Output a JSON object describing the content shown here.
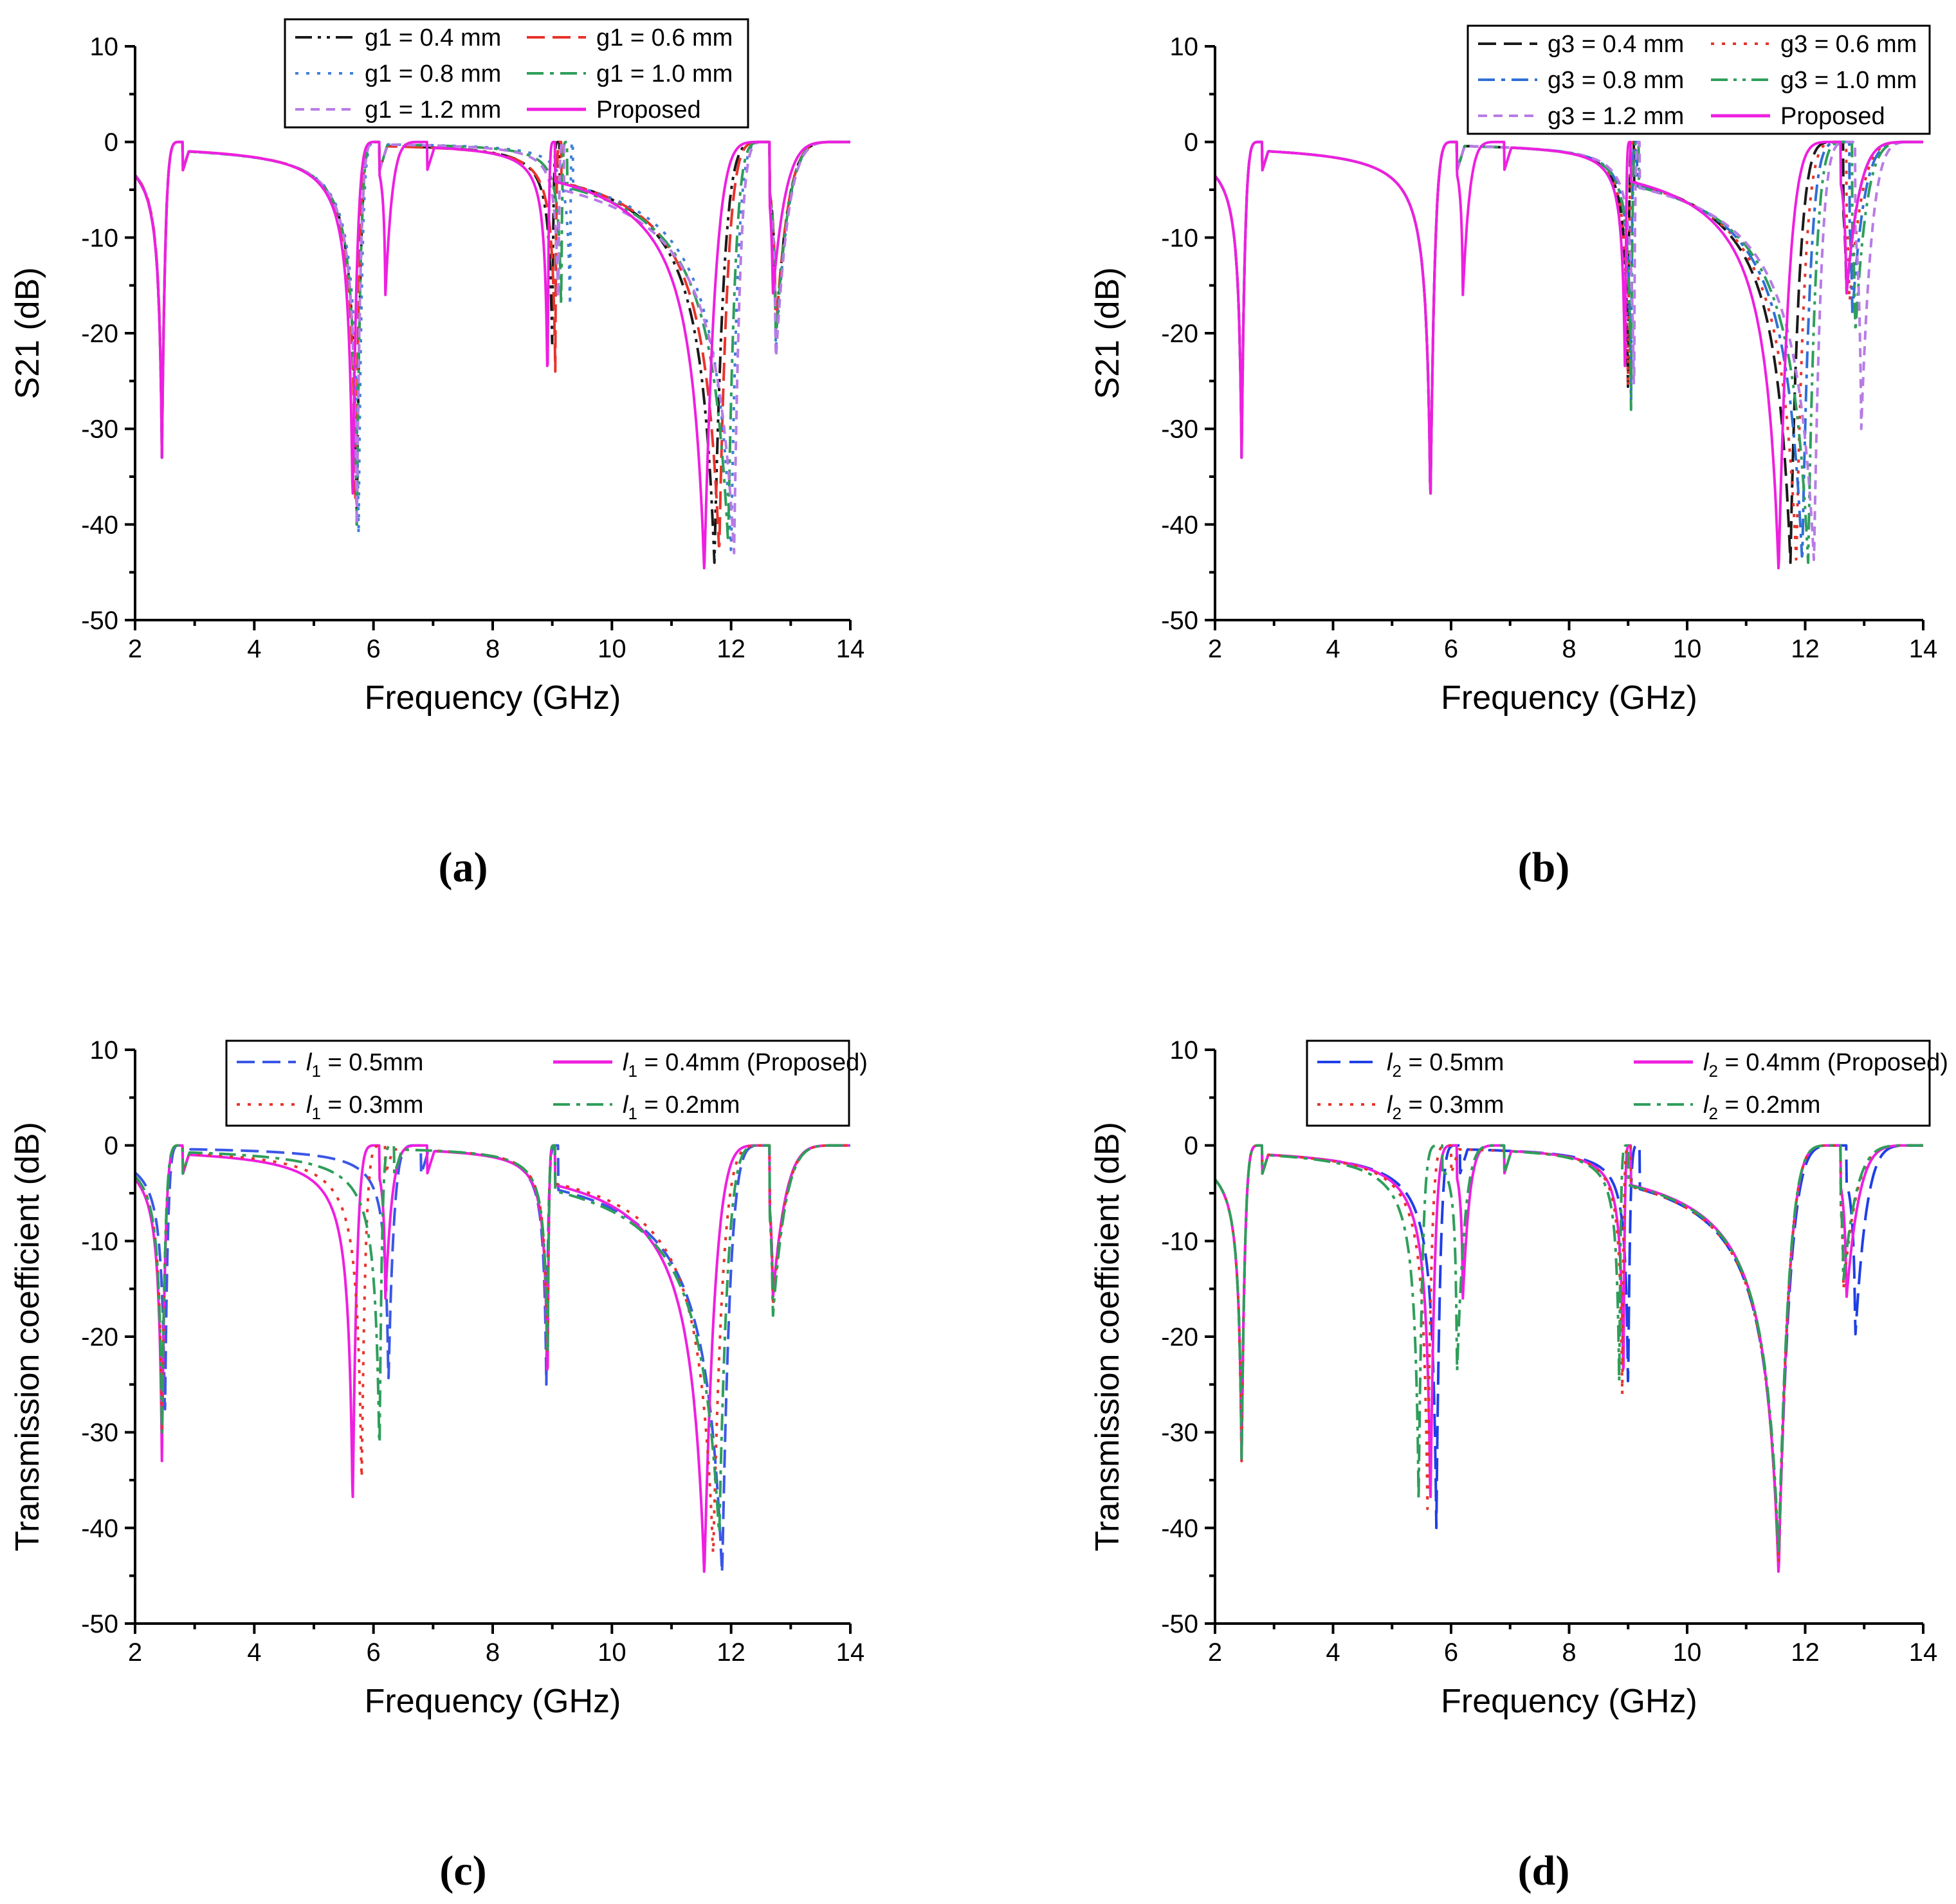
{
  "chart_data": [
    {
      "type": "line",
      "panel": "(a)",
      "xlabel": "Frequency (GHz)",
      "ylabel": "S21 (dB)",
      "xlim": [
        2,
        14
      ],
      "ylim": [
        -50,
        10
      ],
      "xticks": [
        2,
        4,
        6,
        8,
        10,
        12,
        14
      ],
      "yticks": [
        10,
        0,
        -10,
        -20,
        -30,
        -40,
        -50
      ],
      "series": [
        {
          "name": "g1 = 0.4 mm",
          "color": "#1a1a1a",
          "dash": "dashdotdot",
          "notches": [
            {
              "f": 2.45,
              "d": -33,
              "w": 0.06,
              "r": 2.8
            },
            {
              "f": 5.72,
              "d": -40,
              "w": 0.08,
              "r": 6.1
            },
            {
              "f": 9.0,
              "d": -22,
              "w": 0.06,
              "r": 9.12
            },
            {
              "f": 11.72,
              "d": -44,
              "w": 0.3,
              "r": 12.65
            },
            {
              "f": 12.75,
              "d": -20,
              "w": 0.04,
              "r": 14
            }
          ]
        },
        {
          "name": "g1 = 0.6 mm",
          "color": "#e8332b",
          "dash": "dash",
          "notches": [
            {
              "f": 2.45,
              "d": -32,
              "w": 0.06,
              "r": 2.8
            },
            {
              "f": 5.7,
              "d": -39,
              "w": 0.08,
              "r": 6.1
            },
            {
              "f": 9.05,
              "d": -24,
              "w": 0.06,
              "r": 9.15
            },
            {
              "f": 11.8,
              "d": -43,
              "w": 0.32,
              "r": 12.65
            },
            {
              "f": 12.75,
              "d": -20,
              "w": 0.04,
              "r": 14
            }
          ]
        },
        {
          "name": "g1 = 0.8 mm",
          "color": "#3f7fd9",
          "dash": "dot",
          "notches": [
            {
              "f": 2.45,
              "d": -33,
              "w": 0.06,
              "r": 2.8
            },
            {
              "f": 5.75,
              "d": -41,
              "w": 0.08,
              "r": 6.1
            },
            {
              "f": 9.3,
              "d": -18,
              "w": 0.05,
              "r": 9.35
            },
            {
              "f": 12.0,
              "d": -43,
              "w": 0.35,
              "r": 12.65
            },
            {
              "f": 12.75,
              "d": -22,
              "w": 0.04,
              "r": 14
            }
          ]
        },
        {
          "name": "g1 = 1.0 mm",
          "color": "#2e9e5a",
          "dash": "dashdot",
          "notches": [
            {
              "f": 2.45,
              "d": -33,
              "w": 0.06,
              "r": 2.8
            },
            {
              "f": 5.72,
              "d": -40,
              "w": 0.08,
              "r": 6.1
            },
            {
              "f": 9.15,
              "d": -18,
              "w": 0.05,
              "r": 9.25
            },
            {
              "f": 11.95,
              "d": -42,
              "w": 0.38,
              "r": 12.65
            },
            {
              "f": 12.75,
              "d": -21,
              "w": 0.04,
              "r": 14
            }
          ]
        },
        {
          "name": "g1 = 1.2 mm",
          "color": "#b77be6",
          "dash": "shortdash",
          "notches": [
            {
              "f": 2.45,
              "d": -32,
              "w": 0.06,
              "r": 2.8
            },
            {
              "f": 5.72,
              "d": -40,
              "w": 0.08,
              "r": 6.1
            },
            {
              "f": 9.1,
              "d": -18,
              "w": 0.05,
              "r": 9.2
            },
            {
              "f": 12.05,
              "d": -43,
              "w": 0.42,
              "r": 12.65
            },
            {
              "f": 12.75,
              "d": -23,
              "w": 0.04,
              "r": 14
            }
          ]
        },
        {
          "name": "Proposed",
          "color": "#ee1fe0",
          "dash": "solid",
          "notches": [
            {
              "f": 2.45,
              "d": -33,
              "w": 0.06,
              "r": 2.8
            },
            {
              "f": 5.65,
              "d": -38,
              "w": 0.08,
              "r": 6.1
            },
            {
              "f": 6.2,
              "d": -16,
              "w": 0.03,
              "r": 6.9
            },
            {
              "f": 8.92,
              "d": -26,
              "w": 0.05,
              "r": 9.05
            },
            {
              "f": 11.55,
              "d": -45,
              "w": 0.28,
              "r": 12.65
            },
            {
              "f": 12.7,
              "d": -16,
              "w": 0.04,
              "r": 14
            }
          ]
        }
      ],
      "legend": {
        "columns": 2,
        "location": "top-center"
      }
    },
    {
      "type": "line",
      "panel": "(b)",
      "xlabel": "Frequency (GHz)",
      "ylabel": "S21 (dB)",
      "xlim": [
        2,
        14
      ],
      "ylim": [
        -50,
        10
      ],
      "xticks": [
        2,
        4,
        6,
        8,
        10,
        12,
        14
      ],
      "yticks": [
        10,
        0,
        -10,
        -20,
        -30,
        -40,
        -50
      ],
      "series": [
        {
          "name": "g3 = 0.4 mm",
          "color": "#1a1a1a",
          "dash": "dash",
          "notches": [
            {
              "f": 2.45,
              "d": -33,
              "w": 0.06,
              "r": 2.8
            },
            {
              "f": 5.65,
              "d": -38,
              "w": 0.08,
              "r": 6.1
            },
            {
              "f": 9.0,
              "d": -27,
              "w": 0.05,
              "r": 9.1
            },
            {
              "f": 11.75,
              "d": -44,
              "w": 0.32,
              "r": 12.65
            },
            {
              "f": 12.7,
              "d": -16,
              "w": 0.05,
              "r": 14
            }
          ]
        },
        {
          "name": "g3 = 0.6 mm",
          "color": "#e8332b",
          "dash": "dot",
          "notches": [
            {
              "f": 2.45,
              "d": -33,
              "w": 0.06,
              "r": 2.8
            },
            {
              "f": 5.65,
              "d": -38,
              "w": 0.08,
              "r": 6.1
            },
            {
              "f": 9.0,
              "d": -27,
              "w": 0.05,
              "r": 9.12
            },
            {
              "f": 11.85,
              "d": -44,
              "w": 0.34,
              "r": 12.7
            },
            {
              "f": 12.75,
              "d": -17,
              "w": 0.05,
              "r": 14
            }
          ]
        },
        {
          "name": "g3 = 0.8 mm",
          "color": "#2f6fd6",
          "dash": "dashdot",
          "notches": [
            {
              "f": 2.45,
              "d": -33,
              "w": 0.06,
              "r": 2.8
            },
            {
              "f": 5.65,
              "d": -38,
              "w": 0.08,
              "r": 6.1
            },
            {
              "f": 9.05,
              "d": -27,
              "w": 0.05,
              "r": 9.15
            },
            {
              "f": 11.95,
              "d": -44,
              "w": 0.36,
              "r": 12.75
            },
            {
              "f": 12.8,
              "d": -18,
              "w": 0.05,
              "r": 14
            }
          ]
        },
        {
          "name": "g3 = 1.0 mm",
          "color": "#2e9e5a",
          "dash": "dashdotdot",
          "notches": [
            {
              "f": 2.45,
              "d": -33,
              "w": 0.06,
              "r": 2.8
            },
            {
              "f": 5.65,
              "d": -38,
              "w": 0.08,
              "r": 6.1
            },
            {
              "f": 9.05,
              "d": -28,
              "w": 0.05,
              "r": 9.18
            },
            {
              "f": 12.05,
              "d": -44,
              "w": 0.38,
              "r": 12.8
            },
            {
              "f": 12.85,
              "d": -20,
              "w": 0.05,
              "r": 14
            }
          ]
        },
        {
          "name": "g3 = 1.2 mm",
          "color": "#b77be6",
          "dash": "shortdash",
          "notches": [
            {
              "f": 2.45,
              "d": -33,
              "w": 0.06,
              "r": 2.8
            },
            {
              "f": 5.65,
              "d": -38,
              "w": 0.08,
              "r": 6.1
            },
            {
              "f": 9.1,
              "d": -28,
              "w": 0.05,
              "r": 9.2
            },
            {
              "f": 12.15,
              "d": -44,
              "w": 0.4,
              "r": 12.85
            },
            {
              "f": 12.95,
              "d": -30,
              "w": 0.05,
              "r": 14
            }
          ]
        },
        {
          "name": "Proposed",
          "color": "#ee1fe0",
          "dash": "solid",
          "notches": [
            {
              "f": 2.45,
              "d": -33,
              "w": 0.06,
              "r": 2.8
            },
            {
              "f": 5.65,
              "d": -38,
              "w": 0.08,
              "r": 6.1
            },
            {
              "f": 6.2,
              "d": -16,
              "w": 0.03,
              "r": 6.9
            },
            {
              "f": 8.95,
              "d": -26,
              "w": 0.05,
              "r": 9.05
            },
            {
              "f": 11.55,
              "d": -45,
              "w": 0.28,
              "r": 12.6
            },
            {
              "f": 12.7,
              "d": -16,
              "w": 0.04,
              "r": 14
            }
          ]
        }
      ],
      "legend": {
        "columns": 2,
        "location": "top-right"
      }
    },
    {
      "type": "line",
      "panel": "(c)",
      "xlabel": "Frequency (GHz)",
      "ylabel": "Transmission coefficient (dB)",
      "xlim": [
        2,
        14
      ],
      "ylim": [
        -50,
        10
      ],
      "xticks": [
        2,
        4,
        6,
        8,
        10,
        12,
        14
      ],
      "yticks": [
        10,
        0,
        -10,
        -20,
        -30,
        -40,
        -50
      ],
      "series": [
        {
          "name": "l1 = 0.5mm",
          "var": "l",
          "sub": "1",
          "val": " = 0.5mm",
          "color": "#3a57e6",
          "dash": "dash",
          "notches": [
            {
              "f": 2.5,
              "d": -29,
              "w": 0.06,
              "r": 2.8
            },
            {
              "f": 6.25,
              "d": -25,
              "w": 0.06,
              "r": 6.8
            },
            {
              "f": 8.9,
              "d": -25,
              "w": 0.05,
              "r": 9.1
            },
            {
              "f": 11.85,
              "d": -45,
              "w": 0.35,
              "r": 12.65
            },
            {
              "f": 12.7,
              "d": -16,
              "w": 0.04,
              "r": 14
            }
          ]
        },
        {
          "name": "l1 = 0.4mm (Proposed)",
          "var": "l",
          "sub": "1",
          "val": " = 0.4mm (Proposed)",
          "color": "#ee1fe0",
          "dash": "solid",
          "notches": [
            {
              "f": 2.45,
              "d": -33,
              "w": 0.06,
              "r": 2.8
            },
            {
              "f": 5.65,
              "d": -38,
              "w": 0.08,
              "r": 6.1
            },
            {
              "f": 6.2,
              "d": -16,
              "w": 0.03,
              "r": 6.9
            },
            {
              "f": 8.92,
              "d": -26,
              "w": 0.05,
              "r": 9.05
            },
            {
              "f": 11.55,
              "d": -45,
              "w": 0.28,
              "r": 12.65
            },
            {
              "f": 12.7,
              "d": -16,
              "w": 0.04,
              "r": 14
            }
          ]
        },
        {
          "name": "l1 = 0.3mm",
          "var": "l",
          "sub": "1",
          "val": " = 0.3mm",
          "color": "#e8332b",
          "dash": "dot",
          "notches": [
            {
              "f": 2.45,
              "d": -30,
              "w": 0.06,
              "r": 2.8
            },
            {
              "f": 5.8,
              "d": -36,
              "w": 0.08,
              "r": 6.2
            },
            {
              "f": 8.92,
              "d": -24,
              "w": 0.05,
              "r": 9.05
            },
            {
              "f": 11.7,
              "d": -43,
              "w": 0.3,
              "r": 12.65
            },
            {
              "f": 12.7,
              "d": -17,
              "w": 0.04,
              "r": 14
            }
          ]
        },
        {
          "name": "l1 = 0.2mm",
          "var": "l",
          "sub": "1",
          "val": " = 0.2mm",
          "color": "#2e9e5a",
          "dash": "dashdot",
          "notches": [
            {
              "f": 2.45,
              "d": -30,
              "w": 0.06,
              "r": 2.8
            },
            {
              "f": 6.1,
              "d": -33,
              "w": 0.08,
              "r": 6.35
            },
            {
              "f": 8.92,
              "d": -24,
              "w": 0.05,
              "r": 9.05
            },
            {
              "f": 11.8,
              "d": -41,
              "w": 0.4,
              "r": 12.65
            },
            {
              "f": 12.7,
              "d": -18,
              "w": 0.04,
              "r": 14
            }
          ]
        }
      ],
      "legend": {
        "columns": 2,
        "location": "top-right"
      }
    },
    {
      "type": "line",
      "panel": "(d)",
      "xlabel": "Frequency (GHz)",
      "ylabel": "Transmission coefficient (dB)",
      "xlim": [
        2,
        14
      ],
      "ylim": [
        -50,
        10
      ],
      "xticks": [
        2,
        4,
        6,
        8,
        10,
        12,
        14
      ],
      "yticks": [
        10,
        0,
        -10,
        -20,
        -30,
        -40,
        -50
      ],
      "series": [
        {
          "name": "l2 = 0.5mm",
          "var": "l",
          "sub": "2",
          "val": " = 0.5mm",
          "color": "#1f3fe6",
          "dash": "longdash",
          "notches": [
            {
              "f": 2.45,
              "d": -33,
              "w": 0.06,
              "r": 2.8
            },
            {
              "f": 5.75,
              "d": -40,
              "w": 0.08,
              "r": 6.15
            },
            {
              "f": 9.0,
              "d": -26,
              "w": 0.05,
              "r": 9.2
            },
            {
              "f": 11.55,
              "d": -44,
              "w": 0.3,
              "r": 12.7
            },
            {
              "f": 12.85,
              "d": -20,
              "w": 0.04,
              "r": 14
            }
          ]
        },
        {
          "name": "l2 = 0.4mm (Proposed)",
          "var": "l",
          "sub": "2",
          "val": " = 0.4mm (Proposed)",
          "color": "#ee1fe0",
          "dash": "solid",
          "notches": [
            {
              "f": 2.45,
              "d": -33,
              "w": 0.06,
              "r": 2.8
            },
            {
              "f": 5.65,
              "d": -38,
              "w": 0.08,
              "r": 6.1
            },
            {
              "f": 6.2,
              "d": -16,
              "w": 0.03,
              "r": 6.9
            },
            {
              "f": 8.92,
              "d": -26,
              "w": 0.05,
              "r": 9.05
            },
            {
              "f": 11.55,
              "d": -45,
              "w": 0.28,
              "r": 12.6
            },
            {
              "f": 12.7,
              "d": -16,
              "w": 0.04,
              "r": 14
            }
          ]
        },
        {
          "name": "l2 = 0.3mm",
          "var": "l",
          "sub": "2",
          "val": " = 0.3mm",
          "color": "#e8332b",
          "dash": "dot",
          "notches": [
            {
              "f": 2.45,
              "d": -33,
              "w": 0.06,
              "r": 2.8
            },
            {
              "f": 5.6,
              "d": -38,
              "w": 0.08,
              "r": 6.0
            },
            {
              "f": 8.9,
              "d": -26,
              "w": 0.05,
              "r": 9.05
            },
            {
              "f": 11.55,
              "d": -44,
              "w": 0.3,
              "r": 12.6
            },
            {
              "f": 12.65,
              "d": -15,
              "w": 0.04,
              "r": 14
            }
          ]
        },
        {
          "name": "l2 = 0.2mm",
          "var": "l",
          "sub": "2",
          "val": " = 0.2mm",
          "color": "#2e9e5a",
          "dash": "dashdot",
          "notches": [
            {
              "f": 2.45,
              "d": -33,
              "w": 0.06,
              "r": 2.8
            },
            {
              "f": 5.45,
              "d": -37,
              "w": 0.08,
              "r": 5.85
            },
            {
              "f": 6.1,
              "d": -24,
              "w": 0.03,
              "r": 6.9
            },
            {
              "f": 8.85,
              "d": -26,
              "w": 0.05,
              "r": 9.0
            },
            {
              "f": 11.55,
              "d": -43,
              "w": 0.3,
              "r": 12.6
            },
            {
              "f": 12.65,
              "d": -14,
              "w": 0.04,
              "r": 14
            }
          ]
        }
      ],
      "legend": {
        "columns": 2,
        "location": "top-right"
      }
    }
  ]
}
